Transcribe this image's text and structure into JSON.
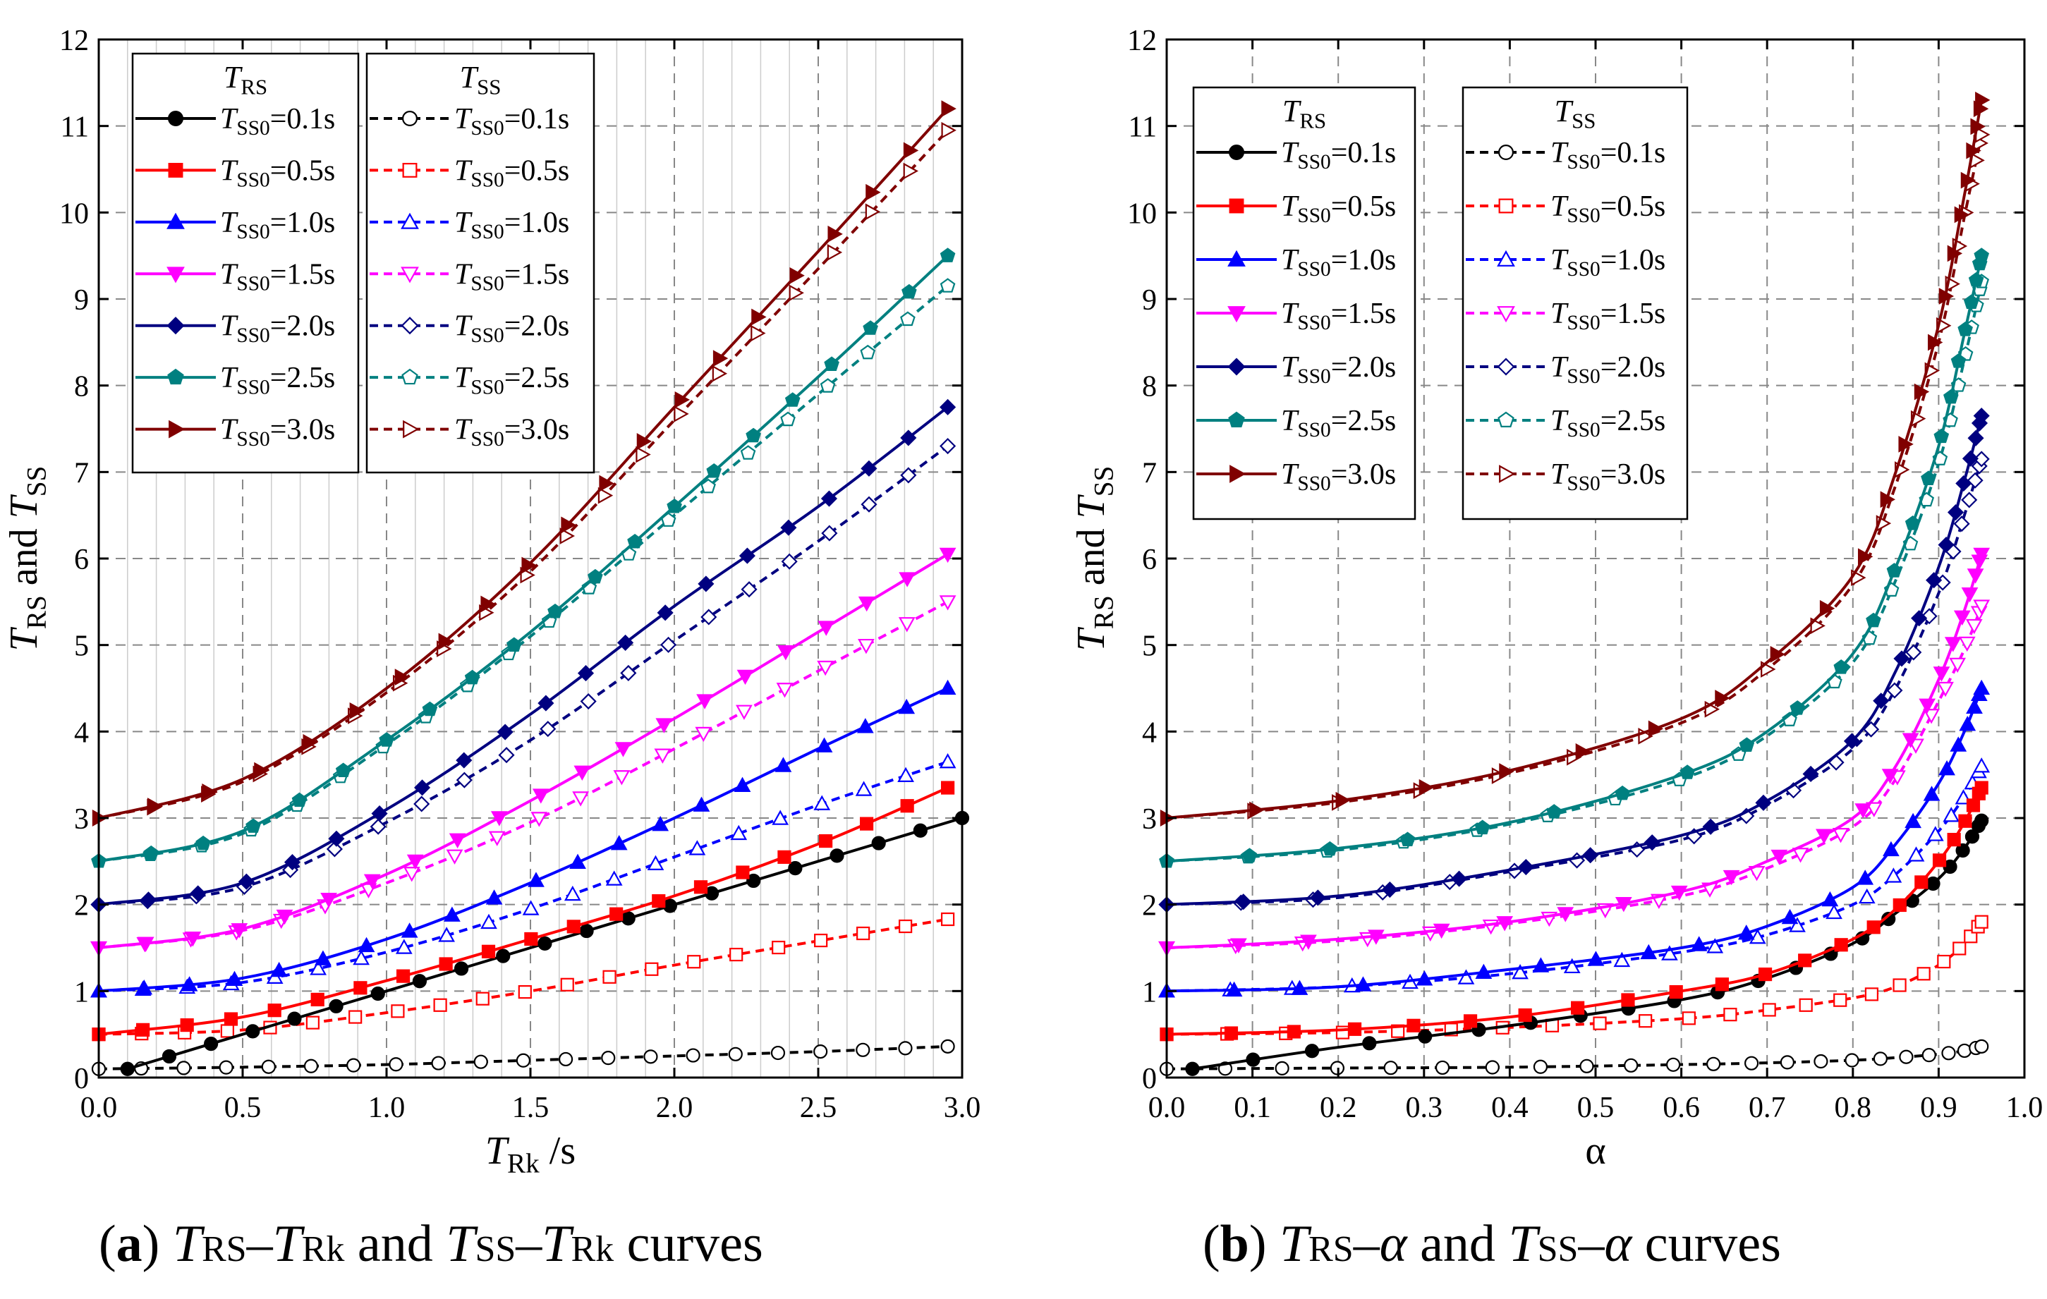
{
  "chart_data": [
    {
      "id": "a",
      "type": "line",
      "xlabel_main": "T",
      "xlabel_sub": "Rk",
      "xlabel_tail": " /s",
      "ylabel_parts": [
        "T",
        "RS",
        " and ",
        "T",
        "SS"
      ],
      "xlim": [
        0.0,
        3.0
      ],
      "ylim": [
        0,
        12
      ],
      "xticks": [
        "0.0",
        "0.5",
        "1.0",
        "1.5",
        "2.0",
        "2.5",
        "3.0"
      ],
      "yticks": [
        "0",
        "1",
        "2",
        "3",
        "4",
        "5",
        "6",
        "7",
        "8",
        "9",
        "10",
        "11",
        "12"
      ],
      "grid": true,
      "legend_titles": {
        "rs_main": "T",
        "rs_sub": "RS",
        "ss_main": "T",
        "ss_sub": "SS"
      },
      "series_rs": [
        {
          "name": "TSS0=0.1s",
          "label_sub": "SS0",
          "label_val": "=0.1s",
          "color": "#000000",
          "marker": "circle",
          "x": [
            0.1,
            0.5,
            1.0,
            1.5,
            2.0,
            2.5,
            3.0
          ],
          "y": [
            0.1,
            0.5,
            1.0,
            1.5,
            2.0,
            2.5,
            3.0
          ]
        },
        {
          "name": "TSS0=0.5s",
          "label_sub": "SS0",
          "label_val": "=0.5s",
          "color": "#ff0000",
          "marker": "square",
          "x": [
            0,
            0.5,
            1.0,
            1.5,
            2.0,
            2.5,
            2.95
          ],
          "y": [
            0.5,
            0.7,
            1.12,
            1.6,
            2.1,
            2.7,
            3.35
          ]
        },
        {
          "name": "TSS0=1.0s",
          "label_sub": "SS0",
          "label_val": "=1.0s",
          "color": "#0000ff",
          "marker": "triangle-up",
          "x": [
            0,
            0.5,
            1.0,
            1.5,
            2.0,
            2.5,
            2.95
          ],
          "y": [
            1.0,
            1.15,
            1.6,
            2.25,
            3.0,
            3.8,
            4.5
          ]
        },
        {
          "name": "TSS0=1.5s",
          "label_sub": "SS0",
          "label_val": "=1.5s",
          "color": "#ff00ff",
          "marker": "triangle-down",
          "x": [
            0,
            0.5,
            1.0,
            1.5,
            2.0,
            2.5,
            2.95
          ],
          "y": [
            1.5,
            1.72,
            2.35,
            3.2,
            4.15,
            5.15,
            6.05
          ]
        },
        {
          "name": "TSS0=2.0s",
          "label_sub": "SS0",
          "label_val": "=2.0s",
          "color": "#000080",
          "marker": "diamond",
          "x": [
            0,
            0.5,
            1.0,
            1.5,
            2.0,
            2.5,
            2.95
          ],
          "y": [
            2.0,
            2.25,
            3.1,
            4.2,
            5.45,
            6.6,
            7.75
          ]
        },
        {
          "name": "TSS0=2.5s",
          "label_sub": "SS0",
          "label_val": "=2.5s",
          "color": "#008080",
          "marker": "pentagon",
          "x": [
            0,
            0.5,
            1.0,
            1.5,
            2.0,
            2.5,
            2.95
          ],
          "y": [
            2.5,
            2.85,
            3.9,
            5.15,
            6.6,
            8.1,
            9.5
          ]
        },
        {
          "name": "TSS0=3.0s",
          "label_sub": "SS0",
          "label_val": "=3.0s",
          "color": "#800000",
          "marker": "triangle-right",
          "x": [
            0,
            0.5,
            1.0,
            1.5,
            2.0,
            2.5,
            2.95
          ],
          "y": [
            3.0,
            3.45,
            4.5,
            5.95,
            7.75,
            9.55,
            11.2
          ]
        }
      ],
      "series_ss": [
        {
          "name": "TSS0=0.1s",
          "label_sub": "SS0",
          "label_val": "=0.1s",
          "color": "#000000",
          "marker": "circle",
          "x": [
            0,
            0.5,
            1.0,
            1.5,
            2.0,
            2.5,
            2.95
          ],
          "y": [
            0.1,
            0.12,
            0.15,
            0.2,
            0.25,
            0.3,
            0.36
          ]
        },
        {
          "name": "TSS0=0.5s",
          "label_sub": "SS0",
          "label_val": "=0.5s",
          "color": "#ff0000",
          "marker": "square",
          "x": [
            0,
            0.5,
            1.0,
            1.5,
            2.0,
            2.5,
            2.95
          ],
          "y": [
            0.5,
            0.55,
            0.75,
            1.0,
            1.3,
            1.58,
            1.83
          ]
        },
        {
          "name": "TSS0=1.0s",
          "label_sub": "SS0",
          "label_val": "=1.0s",
          "color": "#0000ff",
          "marker": "triangle-up",
          "x": [
            0,
            0.5,
            1.0,
            1.5,
            2.0,
            2.5,
            2.95
          ],
          "y": [
            1.0,
            1.1,
            1.45,
            1.95,
            2.55,
            3.15,
            3.65
          ]
        },
        {
          "name": "TSS0=1.5s",
          "label_sub": "SS0",
          "label_val": "=1.5s",
          "color": "#ff00ff",
          "marker": "triangle-down",
          "x": [
            0,
            0.5,
            1.0,
            1.5,
            2.0,
            2.5,
            2.95
          ],
          "y": [
            1.5,
            1.7,
            2.25,
            2.95,
            3.8,
            4.7,
            5.5
          ]
        },
        {
          "name": "TSS0=2.0s",
          "label_sub": "SS0",
          "label_val": "=2.0s",
          "color": "#000080",
          "marker": "diamond",
          "x": [
            0,
            0.5,
            1.0,
            1.5,
            2.0,
            2.5,
            2.95
          ],
          "y": [
            2.0,
            2.2,
            2.95,
            3.9,
            5.05,
            6.2,
            7.3
          ]
        },
        {
          "name": "TSS0=2.5s",
          "label_sub": "SS0",
          "label_val": "=2.5s",
          "color": "#008080",
          "marker": "pentagon",
          "x": [
            0,
            0.5,
            1.0,
            1.5,
            2.0,
            2.5,
            2.95
          ],
          "y": [
            2.5,
            2.82,
            3.85,
            5.1,
            6.5,
            7.9,
            9.15
          ]
        },
        {
          "name": "TSS0=3.0s",
          "label_sub": "SS0",
          "label_val": "=3.0s",
          "color": "#800000",
          "marker": "triangle-right",
          "x": [
            0,
            0.5,
            1.0,
            1.5,
            2.0,
            2.5,
            2.95
          ],
          "y": [
            3.0,
            3.42,
            4.45,
            5.85,
            7.6,
            9.35,
            10.95
          ]
        }
      ]
    },
    {
      "id": "b",
      "type": "line",
      "xlabel_main": "α",
      "xlabel_sub": "",
      "xlabel_tail": "",
      "ylabel_parts": [
        "T",
        "RS",
        " and ",
        "T",
        "SS"
      ],
      "xlim": [
        0.0,
        1.0
      ],
      "ylim": [
        0,
        12
      ],
      "xticks": [
        "0.0",
        "0.1",
        "0.2",
        "0.3",
        "0.4",
        "0.5",
        "0.6",
        "0.7",
        "0.8",
        "0.9",
        "1.0"
      ],
      "yticks": [
        "0",
        "1",
        "2",
        "3",
        "4",
        "5",
        "6",
        "7",
        "8",
        "9",
        "10",
        "11",
        "12"
      ],
      "grid": true,
      "legend_titles": {
        "rs_main": "T",
        "rs_sub": "RS",
        "ss_main": "T",
        "ss_sub": "SS"
      },
      "series_rs": [
        {
          "name": "TSS0=0.1s",
          "label_sub": "SS0",
          "label_val": "=0.1s",
          "color": "#000000",
          "marker": "circle",
          "x": [
            0.03,
            0.2,
            0.4,
            0.6,
            0.7,
            0.8,
            0.85,
            0.9,
            0.93,
            0.95
          ],
          "y": [
            0.1,
            0.35,
            0.6,
            0.9,
            1.15,
            1.55,
            1.9,
            2.3,
            2.65,
            2.97
          ]
        },
        {
          "name": "TSS0=0.5s",
          "label_sub": "SS0",
          "label_val": "=0.5s",
          "color": "#ff0000",
          "marker": "square",
          "x": [
            0,
            0.2,
            0.4,
            0.6,
            0.7,
            0.8,
            0.85,
            0.9,
            0.93,
            0.95
          ],
          "y": [
            0.5,
            0.55,
            0.7,
            1.0,
            1.2,
            1.6,
            1.95,
            2.5,
            2.95,
            3.35
          ]
        },
        {
          "name": "TSS0=1.0s",
          "label_sub": "SS0",
          "label_val": "=1.0s",
          "color": "#0000ff",
          "marker": "triangle-up",
          "x": [
            0,
            0.2,
            0.4,
            0.6,
            0.7,
            0.8,
            0.85,
            0.9,
            0.93,
            0.95
          ],
          "y": [
            1.0,
            1.05,
            1.25,
            1.5,
            1.75,
            2.2,
            2.7,
            3.4,
            4.0,
            4.5
          ]
        },
        {
          "name": "TSS0=1.5s",
          "label_sub": "SS0",
          "label_val": "=1.5s",
          "color": "#ff00ff",
          "marker": "triangle-down",
          "x": [
            0,
            0.2,
            0.4,
            0.6,
            0.7,
            0.8,
            0.85,
            0.9,
            0.93,
            0.95
          ],
          "y": [
            1.5,
            1.6,
            1.8,
            2.15,
            2.5,
            3.0,
            3.6,
            4.6,
            5.4,
            6.05
          ]
        },
        {
          "name": "TSS0=2.0s",
          "label_sub": "SS0",
          "label_val": "=2.0s",
          "color": "#000080",
          "marker": "diamond",
          "x": [
            0,
            0.2,
            0.4,
            0.6,
            0.7,
            0.8,
            0.85,
            0.9,
            0.93,
            0.95
          ],
          "y": [
            2.0,
            2.1,
            2.4,
            2.8,
            3.2,
            3.9,
            4.7,
            5.9,
            6.9,
            7.65
          ]
        },
        {
          "name": "TSS0=2.5s",
          "label_sub": "SS0",
          "label_val": "=2.5s",
          "color": "#008080",
          "marker": "pentagon",
          "x": [
            0,
            0.2,
            0.4,
            0.6,
            0.7,
            0.8,
            0.85,
            0.9,
            0.93,
            0.95
          ],
          "y": [
            2.5,
            2.65,
            2.95,
            3.5,
            4.0,
            4.9,
            5.9,
            7.3,
            8.6,
            9.5
          ]
        },
        {
          "name": "TSS0=3.0s",
          "label_sub": "SS0",
          "label_val": "=3.0s",
          "color": "#800000",
          "marker": "triangle-right",
          "x": [
            0,
            0.2,
            0.4,
            0.6,
            0.7,
            0.8,
            0.85,
            0.9,
            0.93,
            0.95
          ],
          "y": [
            3.0,
            3.2,
            3.55,
            4.15,
            4.8,
            5.8,
            7.0,
            8.7,
            10.2,
            11.3
          ]
        }
      ],
      "series_ss": [
        {
          "name": "TSS0=0.1s",
          "label_sub": "SS0",
          "label_val": "=0.1s",
          "color": "#000000",
          "marker": "circle",
          "x": [
            0,
            0.2,
            0.4,
            0.6,
            0.7,
            0.8,
            0.85,
            0.9,
            0.93,
            0.95
          ],
          "y": [
            0.1,
            0.11,
            0.12,
            0.15,
            0.17,
            0.2,
            0.23,
            0.27,
            0.31,
            0.36
          ]
        },
        {
          "name": "TSS0=0.5s",
          "label_sub": "SS0",
          "label_val": "=0.5s",
          "color": "#ff0000",
          "marker": "square",
          "x": [
            0,
            0.2,
            0.4,
            0.6,
            0.7,
            0.8,
            0.85,
            0.9,
            0.93,
            0.95
          ],
          "y": [
            0.5,
            0.52,
            0.58,
            0.68,
            0.78,
            0.92,
            1.05,
            1.3,
            1.55,
            1.8
          ]
        },
        {
          "name": "TSS0=1.0s",
          "label_sub": "SS0",
          "label_val": "=1.0s",
          "color": "#0000ff",
          "marker": "triangle-up",
          "x": [
            0,
            0.2,
            0.4,
            0.6,
            0.7,
            0.8,
            0.85,
            0.9,
            0.93,
            0.95
          ],
          "y": [
            1.0,
            1.05,
            1.2,
            1.45,
            1.65,
            2.0,
            2.35,
            2.85,
            3.25,
            3.6
          ]
        },
        {
          "name": "TSS0=1.5s",
          "label_sub": "SS0",
          "label_val": "=1.5s",
          "color": "#ff00ff",
          "marker": "triangle-down",
          "x": [
            0,
            0.2,
            0.4,
            0.6,
            0.7,
            0.8,
            0.85,
            0.9,
            0.93,
            0.95
          ],
          "y": [
            1.5,
            1.58,
            1.78,
            2.1,
            2.42,
            2.9,
            3.45,
            4.35,
            4.95,
            5.45
          ]
        },
        {
          "name": "TSS0=2.0s",
          "label_sub": "SS0",
          "label_val": "=2.0s",
          "color": "#000080",
          "marker": "diamond",
          "x": [
            0,
            0.2,
            0.4,
            0.6,
            0.7,
            0.8,
            0.85,
            0.9,
            0.93,
            0.95
          ],
          "y": [
            2.0,
            2.08,
            2.38,
            2.75,
            3.15,
            3.8,
            4.5,
            5.6,
            6.5,
            7.15
          ]
        },
        {
          "name": "TSS0=2.5s",
          "label_sub": "SS0",
          "label_val": "=2.5s",
          "color": "#008080",
          "marker": "pentagon",
          "x": [
            0,
            0.2,
            0.4,
            0.6,
            0.7,
            0.8,
            0.85,
            0.9,
            0.93,
            0.95
          ],
          "y": [
            2.5,
            2.63,
            2.93,
            3.45,
            3.95,
            4.8,
            5.75,
            7.1,
            8.3,
            9.2
          ]
        },
        {
          "name": "TSS0=3.0s",
          "label_sub": "SS0",
          "label_val": "=3.0s",
          "color": "#800000",
          "marker": "triangle-right",
          "x": [
            0,
            0.2,
            0.4,
            0.6,
            0.7,
            0.8,
            0.85,
            0.9,
            0.93,
            0.95
          ],
          "y": [
            3.0,
            3.18,
            3.52,
            4.1,
            4.72,
            5.7,
            6.85,
            8.5,
            9.95,
            10.9
          ]
        }
      ]
    }
  ],
  "captions": {
    "a": {
      "label": "a",
      "p1": "T",
      "s1": "RS",
      "d1": "–",
      "p2": "T",
      "s2": "Rk",
      "mid": " and ",
      "p3": "T",
      "s3": "SS",
      "d2": "–",
      "p4": "T",
      "s4": "Rk",
      "tail": " curves"
    },
    "b": {
      "label": "b",
      "p1": "T",
      "s1": "RS",
      "d1": "–",
      "p2": "α",
      "mid": " and ",
      "p3": "T",
      "s3": "SS",
      "d2": "–",
      "p4": "α",
      "tail": " curves"
    }
  }
}
